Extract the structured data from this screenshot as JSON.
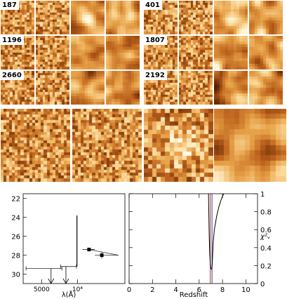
{
  "grid": {
    "left_objects": [
      "187",
      "1196",
      "2660"
    ],
    "right_objects": [
      "401",
      "1807",
      "2192"
    ]
  },
  "sed_plot": {
    "y_ticks": [
      "22",
      "24",
      "26",
      "28",
      "30"
    ],
    "x_ticks": [
      "5000",
      "10⁴"
    ],
    "xlabel": "λ(Å)"
  },
  "redshift_plot": {
    "x_ticks": [
      "0",
      "2",
      "4",
      "6",
      "8",
      "10"
    ],
    "xlabel": "Redshift",
    "right_ticks": [
      "1",
      "0.8",
      "0.6",
      "0.4",
      "0.2",
      "0"
    ],
    "right_label": "χ²ᵥ"
  },
  "chart_data": [
    {
      "type": "scatter",
      "title": "",
      "xlabel": "λ(Å)",
      "ylabel": "",
      "x_scale": "log",
      "y_inverted": true,
      "xlim": [
        3500,
        25000
      ],
      "ylim": [
        31,
        21.5
      ],
      "detections": [
        {
          "x": 12500,
          "y": 27.4,
          "xerr_low": 11000,
          "xerr_high": 14000,
          "yerr": 0.2
        },
        {
          "x": 16000,
          "y": 28.0,
          "xerr_low": 14000,
          "xerr_high": 22000,
          "yerr": 0.35
        }
      ],
      "upper_limits": [
        {
          "x": 6000,
          "y": 29.4,
          "x_low": 3700,
          "x_high": 7400
        },
        {
          "x": 8000,
          "y": 29.2,
          "x_low": 7200,
          "x_high": 9800
        }
      ],
      "spectrum_break_x": 9900,
      "grid": false
    },
    {
      "type": "line",
      "title": "",
      "xlabel": "Redshift",
      "ylabel": "χ²ᵥ",
      "xlim": [
        0,
        11
      ],
      "ylim": [
        0,
        1
      ],
      "series": [
        {
          "x": [
            6.8,
            6.85,
            6.9,
            6.95,
            7.0,
            7.05,
            7.1,
            7.15,
            7.2,
            7.3,
            7.5,
            7.7,
            7.9,
            8.1
          ],
          "y": [
            1.0,
            0.6,
            0.35,
            0.22,
            0.17,
            0.16,
            0.18,
            0.3,
            0.45,
            0.6,
            0.75,
            0.86,
            0.94,
            1.0
          ]
        }
      ],
      "vertical_markers": [
        {
          "x": 6.95,
          "color": "#c0392b"
        },
        {
          "x": 7.1,
          "color": "#2c3e9e"
        }
      ],
      "grid": false
    }
  ]
}
